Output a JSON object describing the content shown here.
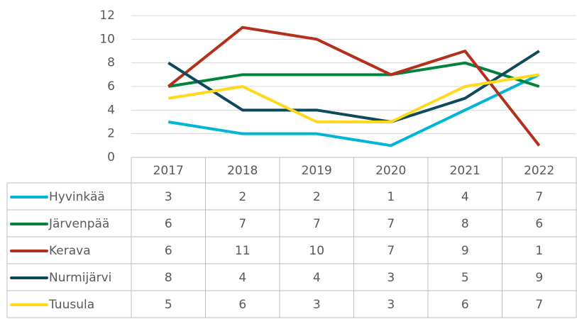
{
  "chart_data": {
    "type": "line",
    "categories": [
      "2017",
      "2018",
      "2019",
      "2020",
      "2021",
      "2022"
    ],
    "series": [
      {
        "name": "Hyvinkää",
        "color": "#00b5d6",
        "values": [
          3,
          2,
          2,
          1,
          4,
          7
        ]
      },
      {
        "name": "Järvenpää",
        "color": "#00843d",
        "values": [
          6,
          7,
          7,
          7,
          8,
          6
        ]
      },
      {
        "name": "Kerava",
        "color": "#b3311c",
        "values": [
          6,
          11,
          10,
          7,
          9,
          1
        ]
      },
      {
        "name": "Nurmijärvi",
        "color": "#0e4a5c",
        "values": [
          8,
          4,
          4,
          3,
          5,
          9
        ]
      },
      {
        "name": "Tuusula",
        "color": "#ffd91a",
        "values": [
          5,
          6,
          3,
          3,
          6,
          7
        ]
      }
    ],
    "ylim": [
      0,
      12
    ],
    "yticks": [
      0,
      2,
      4,
      6,
      8,
      10,
      12
    ],
    "grid": true,
    "data_table": true
  }
}
